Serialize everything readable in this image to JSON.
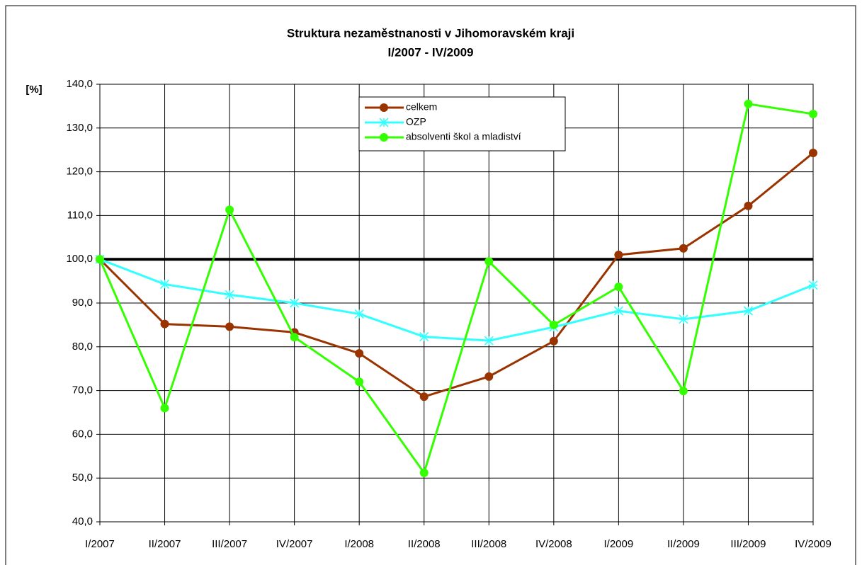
{
  "chart_data": {
    "type": "line",
    "title": "Struktura nezaměstnanosti v Jihomoravském kraji",
    "subtitle": "I/2007 - IV/2009",
    "y_label": "[%]",
    "categories": [
      "I/2007",
      "II/2007",
      "III/2007",
      "IV/2007",
      "I/2008",
      "II/2008",
      "III/2008",
      "IV/2008",
      "I/2009",
      "II/2009",
      "III/2009",
      "IV/2009"
    ],
    "series": [
      {
        "name": "celkem",
        "color": "#993300",
        "marker": "circle",
        "values": [
          100,
          85.2,
          84.6,
          83.3,
          78.5,
          68.6,
          73.2,
          81.3,
          101.0,
          102.5,
          112.2,
          124.3
        ]
      },
      {
        "name": "OZP",
        "color": "#33ffff",
        "marker": "star",
        "values": [
          100,
          94.3,
          91.9,
          90.0,
          87.5,
          82.3,
          81.4,
          84.5,
          88.2,
          86.3,
          88.2,
          94.1
        ]
      },
      {
        "name": "absolventi škol a mladiství",
        "color": "#33ff00",
        "marker": "circle",
        "values": [
          100,
          66.0,
          111.3,
          82.2,
          72.0,
          51.2,
          99.5,
          85.0,
          93.7,
          69.9,
          135.5,
          133.2
        ]
      }
    ],
    "ylim": [
      40,
      140
    ],
    "yticks": [
      {
        "value": 40,
        "label": "40,0"
      },
      {
        "value": 50,
        "label": "50,0"
      },
      {
        "value": 60,
        "label": "60,0"
      },
      {
        "value": 70,
        "label": "70,0"
      },
      {
        "value": 80,
        "label": "80,0"
      },
      {
        "value": 90,
        "label": "90,0"
      },
      {
        "value": 100,
        "label": "100,0"
      },
      {
        "value": 110,
        "label": "110,0"
      },
      {
        "value": 120,
        "label": "120,0"
      },
      {
        "value": 130,
        "label": "130,0"
      },
      {
        "value": 140,
        "label": "140,0"
      }
    ],
    "reference_line": 100,
    "grid": true,
    "legend": "top"
  }
}
